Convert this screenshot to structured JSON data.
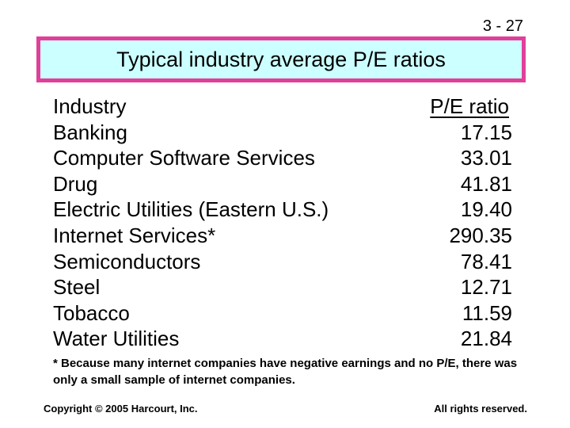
{
  "slide_number": "3 - 27",
  "title": "Typical industry average P/E ratios",
  "table": {
    "headers": {
      "industry": "Industry",
      "pe": "P/E ratio"
    },
    "rows": [
      {
        "industry": "Banking",
        "pe": "17.15"
      },
      {
        "industry": "Computer Software Services",
        "pe": "33.01"
      },
      {
        "industry": "Drug",
        "pe": "41.81"
      },
      {
        "industry": "Electric Utilities (Eastern U.S.)",
        "pe": "19.40"
      },
      {
        "industry": "Internet Services*",
        "pe": "290.35"
      },
      {
        "industry": "Semiconductors",
        "pe": "78.41"
      },
      {
        "industry": "Steel",
        "pe": "12.71"
      },
      {
        "industry": "Tobacco",
        "pe": "11.59"
      },
      {
        "industry": "Water Utilities",
        "pe": "21.84"
      }
    ]
  },
  "footnote": "* Because many internet companies have negative earnings and no P/E, there was only a small sample of internet companies.",
  "footer": {
    "copyright": "Copyright © 2005 Harcourt, Inc.",
    "rights": "All rights reserved."
  },
  "colors": {
    "title_background": "#ccffff",
    "title_border": "#e0409a"
  }
}
